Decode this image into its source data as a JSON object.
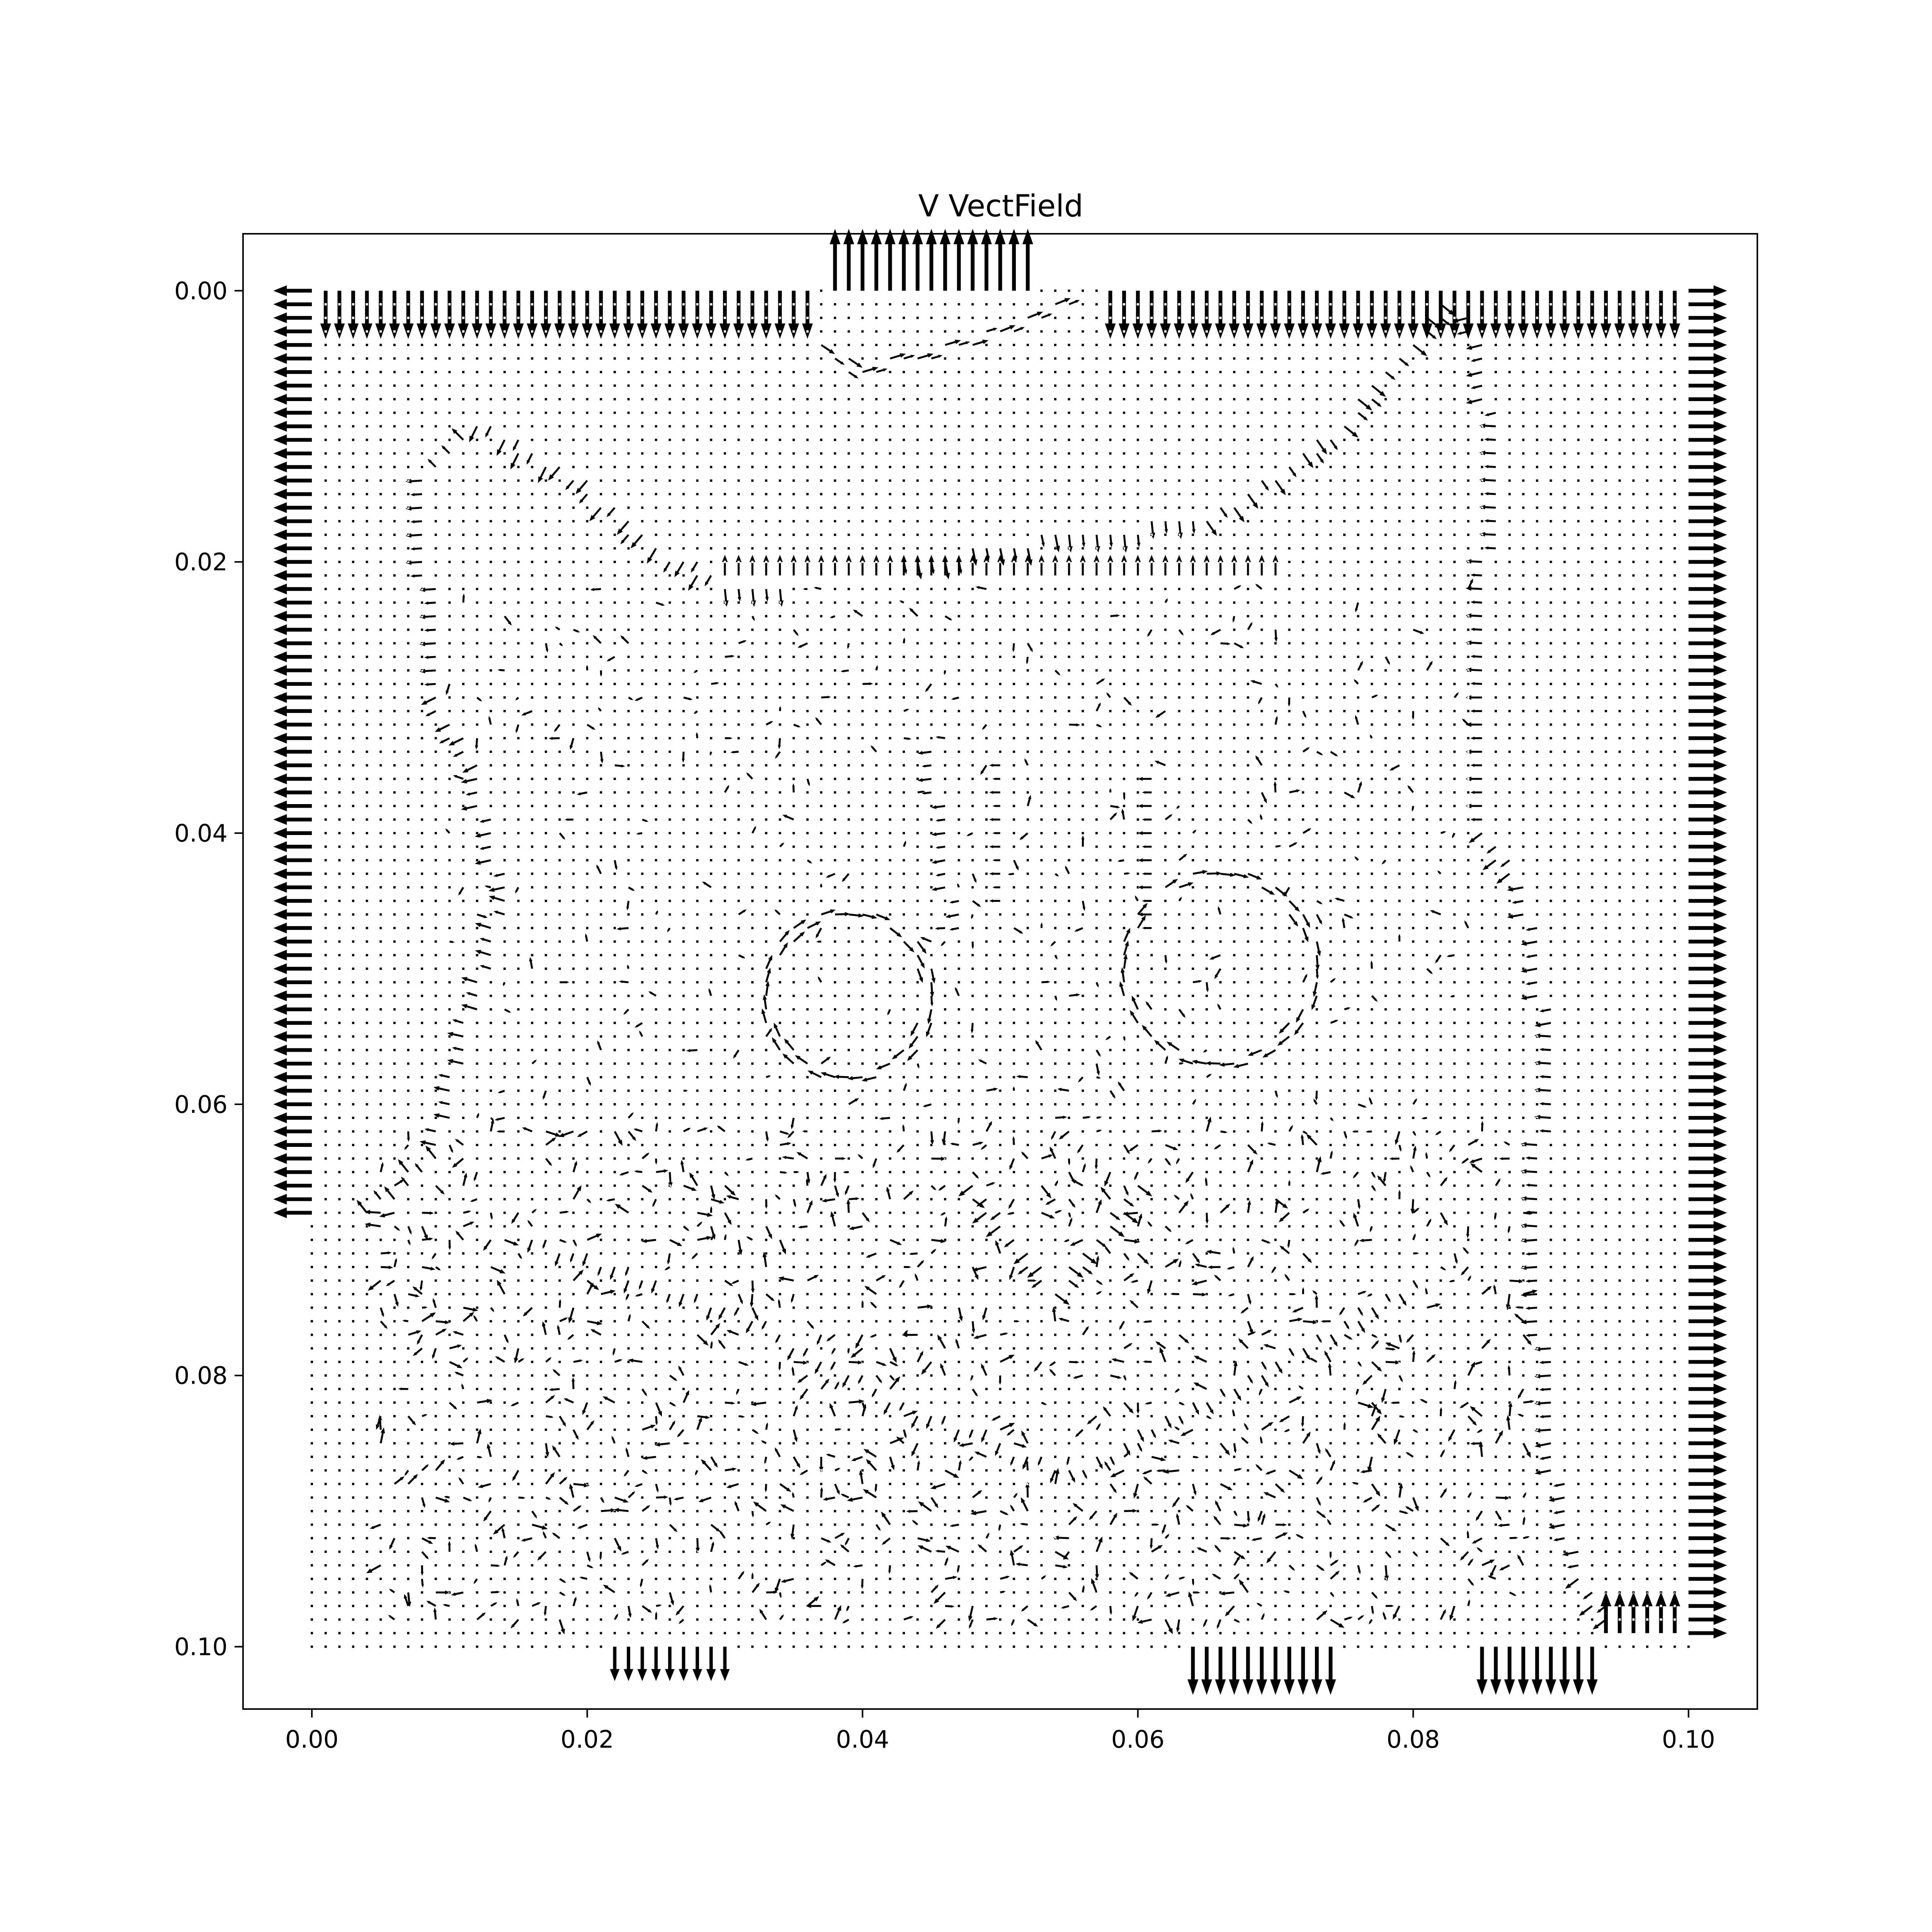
{
  "chart_data": {
    "type": "quiver",
    "title": "V VectField",
    "xlabel": "",
    "ylabel": "",
    "xlim": [
      -0.005,
      0.105
    ],
    "ylim": [
      0.1046,
      -0.0042
    ],
    "y_inverted": true,
    "grid": false,
    "legend": "none",
    "x_ticks": [
      {
        "value": 0.0,
        "label": "0.00"
      },
      {
        "value": 0.02,
        "label": "0.02"
      },
      {
        "value": 0.04,
        "label": "0.04"
      },
      {
        "value": 0.06,
        "label": "0.06"
      },
      {
        "value": 0.08,
        "label": "0.08"
      },
      {
        "value": 0.1,
        "label": "0.10"
      }
    ],
    "y_ticks": [
      {
        "value": 0.0,
        "label": "0.00"
      },
      {
        "value": 0.02,
        "label": "0.02"
      },
      {
        "value": 0.04,
        "label": "0.04"
      },
      {
        "value": 0.06,
        "label": "0.06"
      },
      {
        "value": 0.08,
        "label": "0.08"
      },
      {
        "value": 0.1,
        "label": "0.10"
      }
    ],
    "arrow_color": "#000000",
    "grid_spacing": 0.001,
    "x_range": [
      0.0,
      0.1
    ],
    "y_range": [
      0.0,
      0.1
    ],
    "field_image": "cat-face",
    "strong_vectors": [
      {
        "segment": "left-border",
        "x": 0.0,
        "y_from": 0.0,
        "y_to": 0.068,
        "u": -0.0028,
        "v": 0.0
      },
      {
        "segment": "right-border",
        "x": 0.1,
        "y_from": 0.0,
        "y_to": 0.099,
        "u": 0.0028,
        "v": 0.0
      },
      {
        "segment": "top-edge-left",
        "y": 0.0,
        "x_from": 0.001,
        "x_to": 0.036,
        "u": 0.0,
        "v": 0.0035
      },
      {
        "segment": "top-edge-right",
        "y": 0.0,
        "x_from": 0.058,
        "x_to": 0.099,
        "u": 0.0,
        "v": 0.0035
      },
      {
        "segment": "top-bump",
        "y": 0.0,
        "x_from": 0.038,
        "x_to": 0.052,
        "u": 0.0,
        "v": -0.0045
      },
      {
        "segment": "bottom-edge-a",
        "y": 0.1,
        "x_from": 0.022,
        "x_to": 0.03,
        "u": 0.0,
        "v": 0.0025
      },
      {
        "segment": "bottom-edge-b",
        "y": 0.1,
        "x_from": 0.064,
        "x_to": 0.074,
        "u": 0.0,
        "v": 0.0035
      },
      {
        "segment": "bottom-edge-c",
        "y": 0.1,
        "x_from": 0.085,
        "x_to": 0.093,
        "u": 0.0,
        "v": 0.0035
      },
      {
        "segment": "bottom-right-up",
        "y": 0.099,
        "x_from": 0.094,
        "x_to": 0.099,
        "u": 0.0,
        "v": -0.003
      },
      {
        "segment": "ear-fold-row",
        "y": 0.021,
        "x_from": 0.03,
        "x_to": 0.07,
        "u": 0.0,
        "v": -0.0015
      }
    ]
  }
}
